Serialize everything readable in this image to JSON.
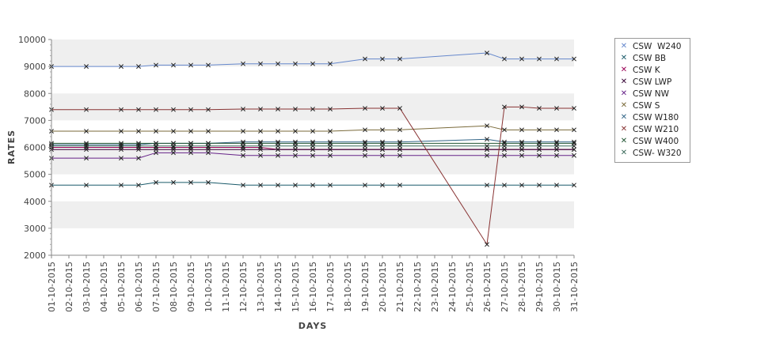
{
  "chart_data": {
    "type": "line",
    "title": "",
    "xlabel": "DAYS",
    "ylabel": "RATES",
    "ylim": [
      2000,
      10000
    ],
    "y_ticks": [
      2000,
      3000,
      4000,
      5000,
      6000,
      7000,
      8000,
      9000,
      10000
    ],
    "grid": "alternating horizontal bands",
    "legend_position": "right",
    "marker": "x",
    "categories": [
      "01-10-2015",
      "02-10-2015",
      "03-10-2015",
      "04-10-2015",
      "05-10-2015",
      "06-10-2015",
      "07-10-2015",
      "08-10-2015",
      "09-10-2015",
      "10-10-2015",
      "11-10-2015",
      "12-10-2015",
      "13-10-2015",
      "14-10-2015",
      "15-10-2015",
      "16-10-2015",
      "17-10-2015",
      "18-10-2015",
      "19-10-2015",
      "20-10-2015",
      "21-10-2015",
      "22-10-2015",
      "23-10-2015",
      "24-10-2015",
      "25-10-2015",
      "26-10-2015",
      "27-10-2015",
      "28-10-2015",
      "29-10-2015",
      "30-10-2015",
      "31-10-2015"
    ],
    "series": [
      {
        "name": "CSW  W240",
        "color": "#6688cc",
        "values": [
          9000,
          null,
          9000,
          null,
          9000,
          9000,
          9050,
          9050,
          9050,
          9050,
          null,
          9100,
          9100,
          9100,
          9100,
          9100,
          9100,
          null,
          9280,
          9280,
          9280,
          null,
          null,
          null,
          null,
          9500,
          9280,
          9280,
          9280,
          9280,
          9280
        ]
      },
      {
        "name": "CSW BB",
        "color": "#1a5a6a",
        "values": [
          4600,
          null,
          4600,
          null,
          4600,
          4600,
          4700,
          4700,
          4700,
          4700,
          null,
          4600,
          4600,
          4600,
          4600,
          4600,
          4600,
          null,
          4600,
          4600,
          4600,
          null,
          null,
          null,
          null,
          4600,
          4600,
          4600,
          4600,
          4600,
          4600
        ]
      },
      {
        "name": "CSW K",
        "color": "#990055",
        "values": [
          6000,
          null,
          6000,
          null,
          6000,
          6000,
          6000,
          6000,
          6000,
          6000,
          null,
          6000,
          6000,
          5920,
          5920,
          5920,
          5920,
          null,
          5920,
          5920,
          5920,
          null,
          null,
          null,
          null,
          5920,
          5920,
          5920,
          5920,
          5920,
          5920
        ]
      },
      {
        "name": "CSW LWP",
        "color": "#330033",
        "values": [
          5920,
          null,
          5920,
          null,
          5920,
          5920,
          5920,
          5920,
          5920,
          5920,
          null,
          5920,
          5920,
          5920,
          5920,
          5920,
          5920,
          null,
          5920,
          5920,
          5920,
          null,
          null,
          null,
          null,
          5920,
          5920,
          5920,
          5920,
          5920,
          5920
        ]
      },
      {
        "name": "CSW NW",
        "color": "#662288",
        "values": [
          5600,
          null,
          5600,
          null,
          5600,
          5600,
          5800,
          5800,
          5800,
          5800,
          null,
          5700,
          5700,
          5700,
          5700,
          5700,
          5700,
          null,
          5700,
          5700,
          5700,
          null,
          null,
          null,
          null,
          5700,
          5700,
          5700,
          5700,
          5700,
          5700
        ]
      },
      {
        "name": "CSW S",
        "color": "#7a6a3a",
        "values": [
          6600,
          null,
          6600,
          null,
          6600,
          6600,
          6600,
          6600,
          6600,
          6600,
          null,
          6600,
          6600,
          6600,
          6600,
          6600,
          6600,
          null,
          6650,
          6650,
          6650,
          null,
          null,
          null,
          null,
          6800,
          6650,
          6650,
          6650,
          6650,
          6650
        ]
      },
      {
        "name": "CSW W180",
        "color": "#336688",
        "values": [
          6100,
          null,
          6100,
          null,
          6100,
          6100,
          6150,
          6150,
          6150,
          6150,
          null,
          6200,
          6200,
          6200,
          6200,
          6200,
          6200,
          null,
          6200,
          6200,
          6200,
          null,
          null,
          null,
          null,
          6300,
          6200,
          6200,
          6200,
          6200,
          6200
        ]
      },
      {
        "name": "CSW W210",
        "color": "#883333",
        "values": [
          7400,
          null,
          7400,
          null,
          7400,
          7400,
          7400,
          7400,
          7400,
          7400,
          null,
          7420,
          7420,
          7420,
          7420,
          7420,
          7420,
          null,
          7450,
          7450,
          7450,
          null,
          null,
          null,
          null,
          2400,
          7500,
          7500,
          7450,
          7450,
          7450
        ]
      },
      {
        "name": "CSW W400",
        "color": "#225533",
        "values": [
          6150,
          null,
          6150,
          null,
          6150,
          6150,
          6150,
          6150,
          6150,
          6150,
          null,
          6150,
          6150,
          6150,
          6150,
          6150,
          6150,
          null,
          6150,
          6150,
          6150,
          null,
          null,
          null,
          null,
          null,
          6150,
          6150,
          6150,
          6150,
          6150
        ]
      },
      {
        "name": "CSW- W320",
        "color": "#3a6a5a",
        "values": [
          6050,
          null,
          6050,
          null,
          6050,
          6050,
          6050,
          6050,
          6050,
          6050,
          null,
          6050,
          6050,
          6050,
          6050,
          6050,
          6050,
          null,
          6050,
          6050,
          6050,
          null,
          null,
          null,
          null,
          6050,
          6050,
          6050,
          6050,
          6050,
          6050
        ]
      }
    ]
  }
}
